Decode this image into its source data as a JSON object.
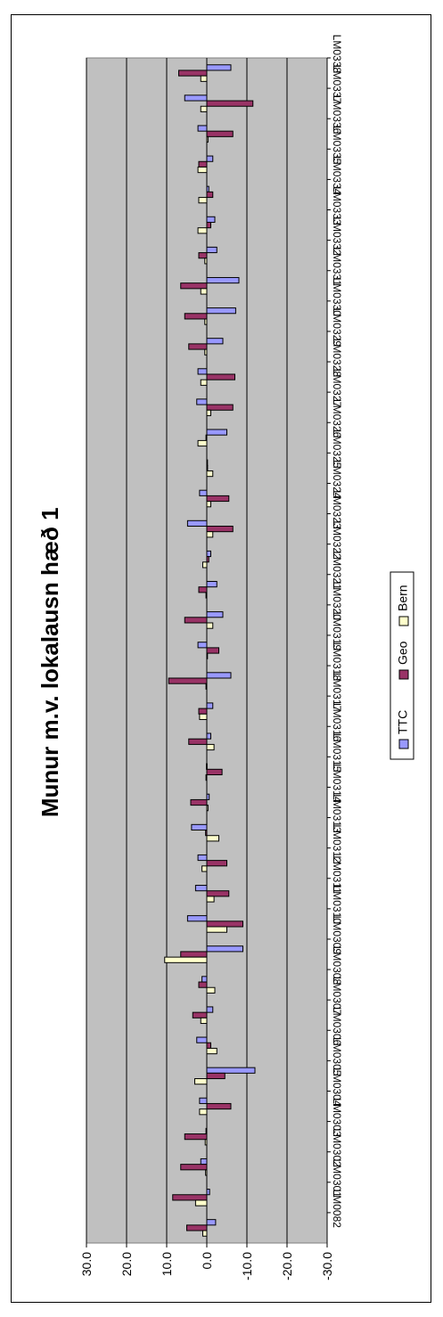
{
  "chart_data": {
    "type": "bar",
    "orientation": "rotated",
    "title": "Munur m.v. lokalausn hæð 1",
    "ylim": [
      -30,
      30
    ],
    "yticks": [
      "30.0",
      "20.0",
      "10.0",
      "0.0",
      "-10.0",
      "-20.0",
      "-30.0"
    ],
    "grid": true,
    "legend_position": "bottom",
    "colors": {
      "plot_bg": "#c0c0c0",
      "TTC": "#9999ff",
      "Geo": "#993366",
      "Bern": "#ffffcc"
    },
    "categories": [
      "LM0082",
      "LM0301",
      "LM0302",
      "LM0303",
      "LM0304",
      "LM0305",
      "LM0306",
      "LM0307",
      "LM0308",
      "LM0309",
      "LM0310",
      "LM0311",
      "LM0312",
      "LM0313",
      "LM0314",
      "LM0315",
      "LM0316",
      "LM0317",
      "LM0318",
      "LM0319",
      "LM0320",
      "LM0321",
      "LM0322",
      "LM0323",
      "LM0324",
      "LM0325",
      "LM0326",
      "LM0327",
      "LM0328",
      "LM0329",
      "LM0330",
      "LM0331",
      "LM0332",
      "LM0333",
      "LM0334",
      "LM0335",
      "LM0336",
      "LM0337",
      "LM0338"
    ],
    "series": [
      {
        "name": "TTC",
        "values": [
          -2.2,
          -0.7,
          1.5,
          0.2,
          1.8,
          -12.0,
          2.5,
          -1.5,
          1.2,
          -9.0,
          4.8,
          2.8,
          2.2,
          3.8,
          -0.6,
          0.1,
          -1.0,
          -1.5,
          -6.0,
          2.2,
          -4.0,
          -2.5,
          -1.0,
          4.8,
          1.8,
          0.0,
          -5.0,
          2.5,
          2.2,
          -4.0,
          -7.2,
          -8.0,
          -2.5,
          -2.0,
          -0.5,
          -1.5,
          2.2,
          5.5,
          -6.0
        ]
      },
      {
        "name": "Geo",
        "values": [
          5.0,
          8.5,
          6.5,
          5.5,
          -6.0,
          -4.5,
          -1.0,
          3.5,
          2.0,
          6.5,
          -9.0,
          -5.5,
          -5.0,
          0.3,
          4.0,
          -3.8,
          4.5,
          2.0,
          9.5,
          -3.0,
          5.5,
          2.0,
          -0.5,
          -6.5,
          -5.5,
          -0.2,
          0.2,
          -6.5,
          -7.0,
          4.5,
          5.5,
          6.5,
          2.0,
          -1.0,
          -1.5,
          2.0,
          -6.5,
          -11.5,
          7.0
        ]
      },
      {
        "name": "Bern",
        "values": [
          1.0,
          2.8,
          0.3,
          0.4,
          1.8,
          3.0,
          -2.5,
          1.5,
          -2.0,
          10.5,
          -5.0,
          -1.8,
          1.2,
          -3.0,
          -0.3,
          0.2,
          -1.8,
          1.8,
          0.2,
          0.0,
          -1.5,
          0.2,
          1.0,
          -1.5,
          -1.0,
          -1.5,
          2.2,
          -1.0,
          1.5,
          0.5,
          0.5,
          1.5,
          0.5,
          2.2,
          2.0,
          2.2,
          -0.3,
          1.5,
          1.5
        ]
      }
    ]
  }
}
